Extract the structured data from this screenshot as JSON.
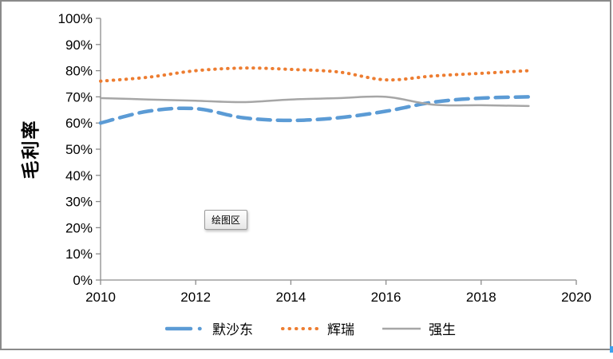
{
  "tooltip": {
    "label": "绘图区"
  },
  "chart_data": {
    "type": "line",
    "title": "",
    "xlabel": "",
    "ylabel": "毛利率",
    "xlim": [
      2010,
      2020
    ],
    "ylim": [
      0,
      100
    ],
    "grid": false,
    "legend_position": "bottom",
    "x_ticks": [
      "2010",
      "2012",
      "2014",
      "2016",
      "2018",
      "2020"
    ],
    "y_ticks": [
      "0%",
      "10%",
      "20%",
      "30%",
      "40%",
      "50%",
      "60%",
      "70%",
      "80%",
      "90%",
      "100%"
    ],
    "x": [
      2010,
      2011,
      2012,
      2013,
      2014,
      2015,
      2016,
      2017,
      2018,
      2019
    ],
    "series": [
      {
        "key": "merck",
        "name": "默沙东",
        "color": "#5B9BD5",
        "style": "dashed",
        "values": [
          60,
          64.5,
          65.5,
          62,
          61,
          62,
          64.5,
          68,
          69.5,
          70
        ]
      },
      {
        "key": "pfizer",
        "name": "辉瑞",
        "color": "#ED7D31",
        "style": "dotted",
        "values": [
          76,
          77.5,
          80,
          81,
          80.5,
          79.5,
          76.5,
          78,
          79,
          80
        ]
      },
      {
        "key": "jnj",
        "name": "强生",
        "color": "#A6A6A6",
        "style": "solid",
        "values": [
          69.5,
          69,
          68.5,
          68,
          69,
          69.5,
          70,
          67,
          66.8,
          66.5
        ]
      }
    ],
    "axis_color": "#8c8c8c",
    "tick_label_color": "#000000"
  }
}
